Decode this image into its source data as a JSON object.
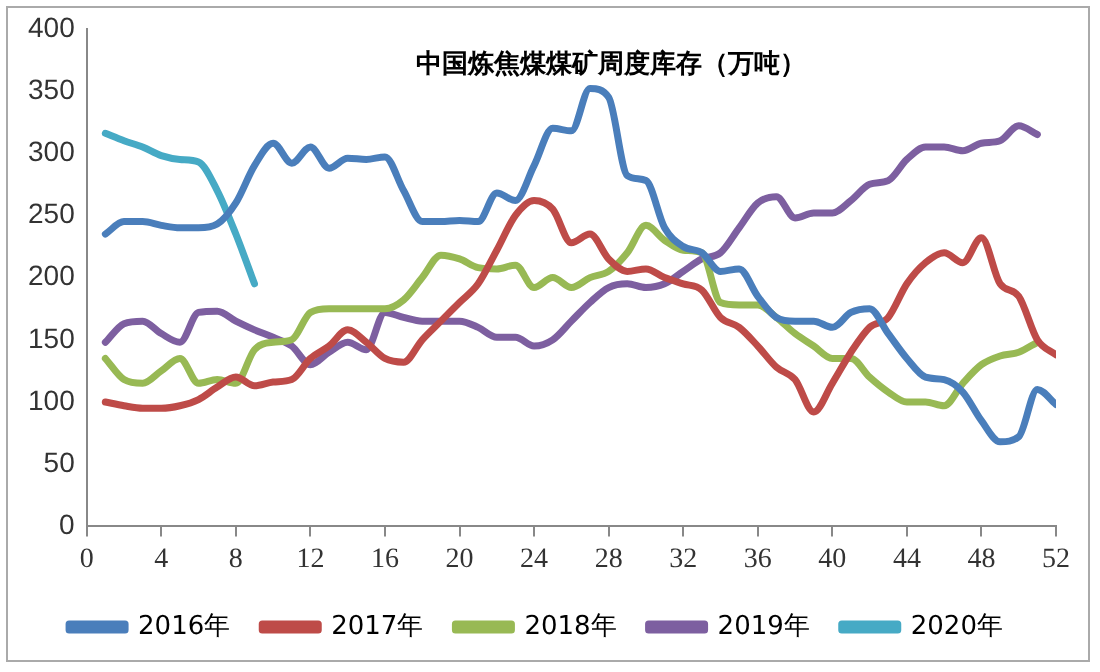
{
  "chart_data": {
    "type": "line",
    "title": "中国炼焦煤煤矿周度库存（万吨）",
    "xlim": [
      0,
      52
    ],
    "xticks": [
      0,
      4,
      8,
      12,
      16,
      20,
      24,
      28,
      32,
      36,
      40,
      44,
      48,
      52
    ],
    "ylim": [
      0,
      400
    ],
    "yticks": [
      0,
      50,
      100,
      150,
      200,
      250,
      300,
      350,
      400
    ],
    "grid": false,
    "legend": "bottom",
    "marker": "none",
    "line_style": "solid",
    "x": [
      1,
      2,
      3,
      4,
      5,
      6,
      7,
      8,
      9,
      10,
      11,
      12,
      13,
      14,
      15,
      16,
      17,
      18,
      19,
      20,
      21,
      22,
      23,
      24,
      25,
      26,
      27,
      28,
      29,
      30,
      31,
      32,
      33,
      34,
      35,
      36,
      37,
      38,
      39,
      40,
      41,
      42,
      43,
      44,
      45,
      46,
      47,
      48,
      49,
      50,
      51,
      52
    ],
    "series": [
      {
        "name": "2016年",
        "color": "#4a7ebb",
        "values": [
          235,
          245,
          245,
          242,
          240,
          240,
          243,
          260,
          290,
          308,
          292,
          305,
          288,
          296,
          295,
          297,
          270,
          245,
          245,
          246,
          245,
          268,
          262,
          290,
          320,
          318,
          352,
          345,
          282,
          278,
          240,
          225,
          220,
          205,
          207,
          185,
          168,
          165,
          165,
          160,
          172,
          175,
          155,
          135,
          120,
          118,
          108,
          85,
          68,
          72,
          110,
          98
        ]
      },
      {
        "name": "2017年",
        "color": "#be4b48",
        "values": [
          100,
          97,
          95,
          95,
          97,
          102,
          112,
          120,
          113,
          116,
          118,
          135,
          145,
          158,
          148,
          135,
          132,
          150,
          165,
          180,
          195,
          222,
          250,
          262,
          255,
          228,
          235,
          215,
          205,
          207,
          200,
          195,
          190,
          168,
          160,
          145,
          128,
          118,
          92,
          115,
          140,
          160,
          168,
          195,
          212,
          220,
          212,
          232,
          195,
          185,
          150,
          138
        ]
      },
      {
        "name": "2018年",
        "color": "#98b954",
        "values": [
          135,
          118,
          115,
          125,
          135,
          115,
          118,
          115,
          142,
          148,
          150,
          172,
          175,
          175,
          175,
          175,
          182,
          200,
          218,
          215,
          208,
          207,
          210,
          192,
          200,
          192,
          200,
          205,
          220,
          242,
          230,
          222,
          220,
          180,
          178,
          178,
          168,
          155,
          145,
          135,
          135,
          120,
          108,
          100,
          100,
          97,
          115,
          130,
          137,
          140,
          148,
          null
        ]
      },
      {
        "name": "2019年",
        "color": "#7d5fa0",
        "values": [
          148,
          163,
          165,
          155,
          148,
          172,
          173,
          165,
          158,
          152,
          145,
          130,
          140,
          148,
          142,
          172,
          168,
          165,
          165,
          165,
          160,
          152,
          152,
          145,
          150,
          165,
          180,
          192,
          195,
          192,
          195,
          205,
          215,
          220,
          240,
          260,
          265,
          248,
          252,
          252,
          262,
          275,
          278,
          295,
          305,
          305,
          302,
          308,
          310,
          322,
          315,
          null
        ]
      },
      {
        "name": "2020年",
        "color": "#46aac5",
        "values": [
          316,
          310,
          305,
          298,
          295,
          293,
          270,
          235,
          195,
          null,
          null,
          null,
          null,
          null,
          null,
          null,
          null,
          null,
          null,
          null,
          null,
          null,
          null,
          null,
          null,
          null,
          null,
          null,
          null,
          null,
          null,
          null,
          null,
          null,
          null,
          null,
          null,
          null,
          null,
          null,
          null,
          null,
          null,
          null,
          null,
          null,
          null,
          null,
          null,
          null,
          null,
          null
        ]
      }
    ]
  }
}
